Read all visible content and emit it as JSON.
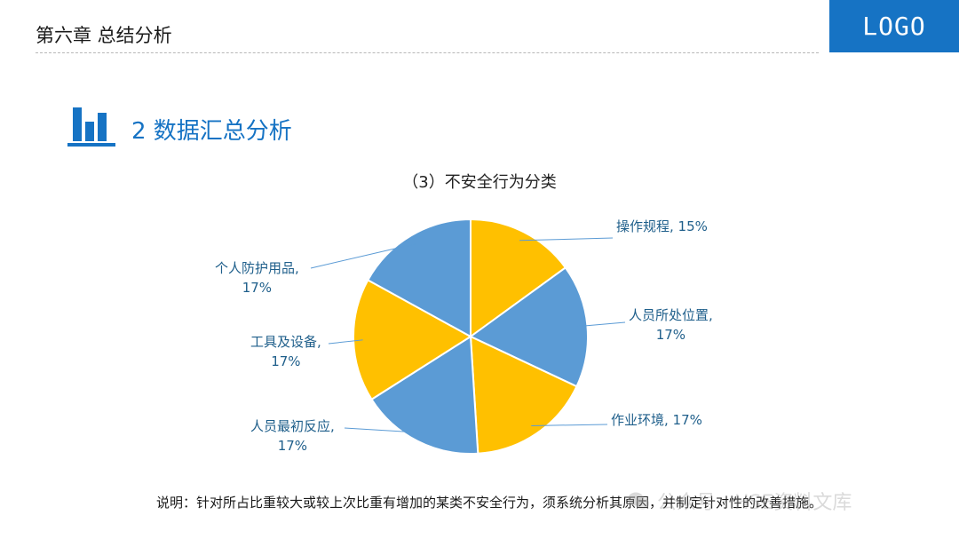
{
  "header": {
    "chapter_title": "第六章 总结分析",
    "logo_text": "LOGO"
  },
  "section": {
    "title": "2 数据汇总分析",
    "icon": "bar-chart-icon"
  },
  "colors": {
    "brand_blue": "#1673c4",
    "slice_yellow": "#ffc000",
    "slice_blue": "#5b9bd5",
    "label_color": "#1f5f8b",
    "leader_line": "#5b9bd5"
  },
  "chart_data": {
    "type": "pie",
    "title": "（3）不安全行为分类",
    "start_angle_deg": 0,
    "direction": "clockwise",
    "slices": [
      {
        "name": "操作规程",
        "value": 15,
        "label_line1": "操作规程, 15%",
        "label_line2": "",
        "color": "#ffc000"
      },
      {
        "name": "人员所处位置",
        "value": 17,
        "label_line1": "人员所处位置,",
        "label_line2": "17%",
        "color": "#5b9bd5"
      },
      {
        "name": "作业环境",
        "value": 17,
        "label_line1": "作业环境, 17%",
        "label_line2": "",
        "color": "#ffc000"
      },
      {
        "name": "人员最初反应",
        "value": 17,
        "label_line1": "人员最初反应,",
        "label_line2": "17%",
        "color": "#5b9bd5"
      },
      {
        "name": "工具及设备",
        "value": 17,
        "label_line1": "工具及设备,",
        "label_line2": "17%",
        "color": "#ffc000"
      },
      {
        "name": "个人防护用品",
        "value": 17,
        "label_line1": "个人防护用品,",
        "label_line2": "17%",
        "color": "#5b9bd5"
      }
    ]
  },
  "note": "说明：针对所占比重较大或较上次比重有增加的某类不安全行为，须系统分析其原因，并制定针对性的改善措施。",
  "watermark": "公众号 · HSE资料文库"
}
